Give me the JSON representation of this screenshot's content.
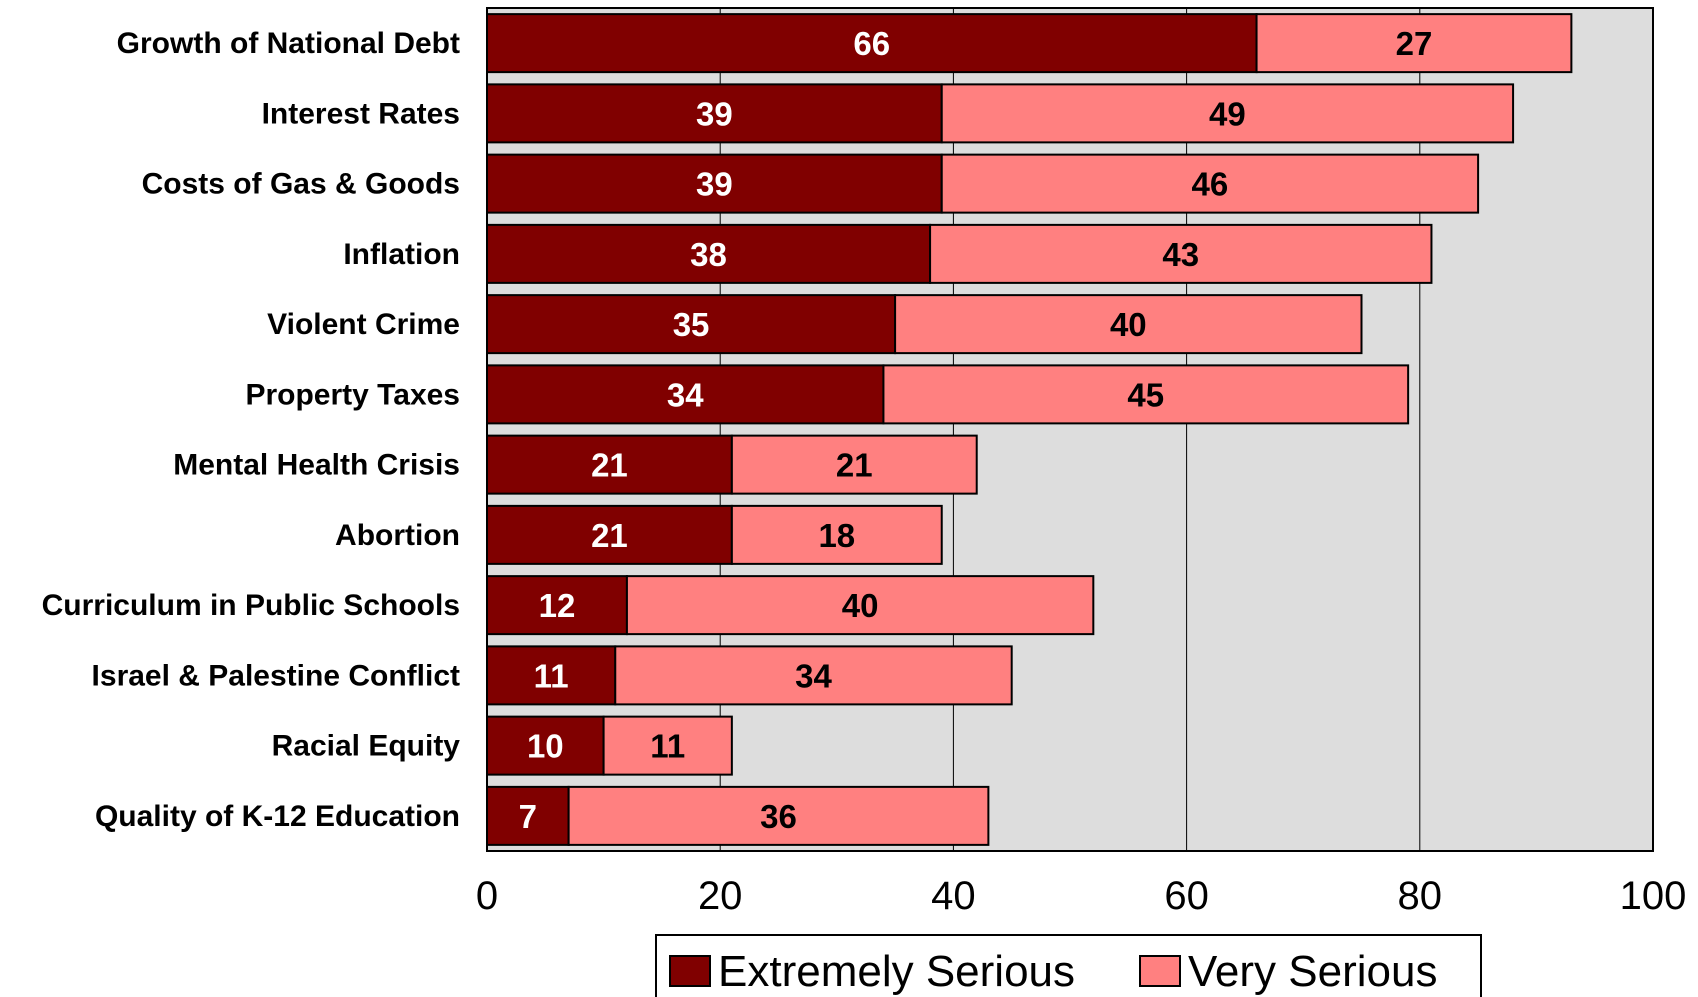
{
  "chart_data": {
    "type": "bar",
    "orientation": "horizontal",
    "stacked": true,
    "categories": [
      "Growth of National Debt",
      "Interest Rates",
      "Costs of Gas & Goods",
      "Inflation",
      "Violent Crime",
      "Property Taxes",
      "Mental Health Crisis",
      "Abortion",
      "Curriculum in Public Schools",
      "Israel & Palestine Conflict",
      "Racial Equity",
      "Quality of K-12 Education"
    ],
    "series": [
      {
        "name": "Extremely Serious",
        "color": "#800000",
        "label_color": "#ffffff",
        "values": [
          66,
          39,
          39,
          38,
          35,
          34,
          21,
          21,
          12,
          11,
          10,
          7
        ]
      },
      {
        "name": "Very Serious",
        "color": "#ff8080",
        "label_color": "#000000",
        "values": [
          27,
          49,
          46,
          43,
          40,
          45,
          21,
          18,
          40,
          34,
          11,
          36
        ]
      }
    ],
    "xlim": [
      0,
      100
    ],
    "xticks": [
      0,
      20,
      40,
      60,
      80,
      100
    ],
    "grid": true,
    "plot_background": "#dddddd",
    "legend_position": "bottom",
    "title": "",
    "xlabel": "",
    "ylabel": ""
  }
}
